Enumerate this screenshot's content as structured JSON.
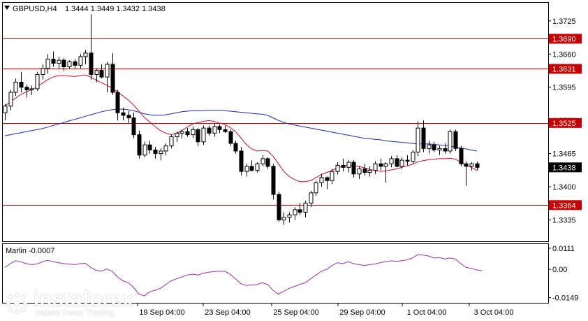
{
  "header": {
    "symbol": "GBPUSD,H4",
    "ohlc": "1.3444 1.3449 1.3432 1.3438",
    "indicator": "Marlin -0.0007"
  },
  "watermark": {
    "brand": "instaforex",
    "tagline": "Instant Forex Trading"
  },
  "colors": {
    "bull": "#ffffff",
    "bear": "#000000",
    "ma_fast": "#c8102e",
    "ma_slow": "#1c2bb0",
    "level": "#c80000",
    "oscillator": "#9b2fae",
    "grid_frame": "#000000"
  },
  "chart_data": [
    {
      "type": "candlestick",
      "title": "GBPUSD,H4",
      "ylim": [
        1.33,
        1.3755
      ],
      "y_ticks": [
        "1.3725",
        "1.3660",
        "1.3595",
        "1.3530",
        "1.3465",
        "1.3400",
        "1.3335"
      ],
      "x_tick_labels": [
        "19 Sep 04:00",
        "23 Sep 04:00",
        "25 Sep 04:00",
        "29 Sep 04:00",
        "1 Oct 04:00",
        "3 Oct 04:00"
      ],
      "current_price": "1.3438",
      "horizontal_levels": [
        "1.3690",
        "1.3631",
        "1.3525",
        "1.3364"
      ],
      "candles": [
        [
          1.3545,
          1.3562,
          1.353,
          1.3558
        ],
        [
          1.3558,
          1.359,
          1.355,
          1.3585
        ],
        [
          1.3585,
          1.3612,
          1.3578,
          1.3605
        ],
        [
          1.3605,
          1.3625,
          1.3585,
          1.3595
        ],
        [
          1.3595,
          1.36,
          1.3575,
          1.359
        ],
        [
          1.359,
          1.3598,
          1.358,
          1.3592
        ],
        [
          1.3592,
          1.3625,
          1.3588,
          1.362
        ],
        [
          1.362,
          1.364,
          1.361,
          1.3632
        ],
        [
          1.3632,
          1.366,
          1.3622,
          1.365
        ],
        [
          1.365,
          1.3665,
          1.3635,
          1.3642
        ],
        [
          1.3642,
          1.3655,
          1.363,
          1.3648
        ],
        [
          1.3648,
          1.3652,
          1.3628,
          1.3635
        ],
        [
          1.3635,
          1.3648,
          1.363,
          1.3645
        ],
        [
          1.3645,
          1.365,
          1.3632,
          1.3638
        ],
        [
          1.3638,
          1.366,
          1.3632,
          1.3655
        ],
        [
          1.3655,
          1.3668,
          1.364,
          1.3662
        ],
        [
          1.3662,
          1.3738,
          1.361,
          1.362
        ],
        [
          1.362,
          1.3632,
          1.3605,
          1.3628
        ],
        [
          1.3628,
          1.364,
          1.3612,
          1.3615
        ],
        [
          1.3615,
          1.3645,
          1.3585,
          1.364
        ],
        [
          1.364,
          1.3662,
          1.358,
          1.3585
        ],
        [
          1.3585,
          1.359,
          1.353,
          1.3545
        ],
        [
          1.3545,
          1.3555,
          1.353,
          1.354
        ],
        [
          1.354,
          1.3548,
          1.3525,
          1.3535
        ],
        [
          1.3535,
          1.3545,
          1.3495,
          1.3502
        ],
        [
          1.3502,
          1.351,
          1.3455,
          1.3462
        ],
        [
          1.3462,
          1.3488,
          1.3458,
          1.3482
        ],
        [
          1.3482,
          1.349,
          1.3465,
          1.3472
        ],
        [
          1.3472,
          1.3478,
          1.3455,
          1.3465
        ],
        [
          1.3465,
          1.3475,
          1.3452,
          1.347
        ],
        [
          1.347,
          1.3485,
          1.3462,
          1.348
        ],
        [
          1.348,
          1.3502,
          1.3475,
          1.3498
        ],
        [
          1.3498,
          1.3508,
          1.3488,
          1.3505
        ],
        [
          1.3505,
          1.3512,
          1.3495,
          1.3508
        ],
        [
          1.3508,
          1.3515,
          1.3498,
          1.3502
        ],
        [
          1.3502,
          1.3518,
          1.3495,
          1.3512
        ],
        [
          1.3512,
          1.3515,
          1.348,
          1.3488
        ],
        [
          1.3488,
          1.352,
          1.3482,
          1.3515
        ],
        [
          1.3515,
          1.352,
          1.35,
          1.3505
        ],
        [
          1.3505,
          1.3525,
          1.3498,
          1.3518
        ],
        [
          1.3518,
          1.3522,
          1.3505,
          1.3512
        ],
        [
          1.3512,
          1.352,
          1.3505,
          1.3508
        ],
        [
          1.3508,
          1.3512,
          1.348,
          1.3485
        ],
        [
          1.3485,
          1.349,
          1.3465,
          1.347
        ],
        [
          1.347,
          1.3478,
          1.3422,
          1.343
        ],
        [
          1.343,
          1.3445,
          1.342,
          1.344
        ],
        [
          1.344,
          1.3452,
          1.343,
          1.3432
        ],
        [
          1.3432,
          1.3448,
          1.3428,
          1.3445
        ],
        [
          1.3445,
          1.3462,
          1.344,
          1.3455
        ],
        [
          1.3455,
          1.3458,
          1.3435,
          1.344
        ],
        [
          1.344,
          1.3445,
          1.3375,
          1.3385
        ],
        [
          1.3385,
          1.339,
          1.3332,
          1.3335
        ],
        [
          1.3335,
          1.335,
          1.3325,
          1.334
        ],
        [
          1.334,
          1.335,
          1.333,
          1.3345
        ],
        [
          1.3345,
          1.336,
          1.3335,
          1.3355
        ],
        [
          1.3355,
          1.3368,
          1.3345,
          1.335
        ],
        [
          1.335,
          1.3372,
          1.334,
          1.3368
        ],
        [
          1.3368,
          1.3392,
          1.336,
          1.3388
        ],
        [
          1.3388,
          1.3412,
          1.3382,
          1.3408
        ],
        [
          1.3408,
          1.3425,
          1.34,
          1.3418
        ],
        [
          1.3418,
          1.342,
          1.3395,
          1.3412
        ],
        [
          1.3412,
          1.3435,
          1.3405,
          1.343
        ],
        [
          1.343,
          1.3448,
          1.3424,
          1.3442
        ],
        [
          1.3442,
          1.3455,
          1.343,
          1.3438
        ],
        [
          1.3438,
          1.3452,
          1.3428,
          1.3448
        ],
        [
          1.3448,
          1.3452,
          1.3418,
          1.3425
        ],
        [
          1.3425,
          1.344,
          1.3415,
          1.3435
        ],
        [
          1.3435,
          1.3445,
          1.3422,
          1.3428
        ],
        [
          1.3428,
          1.344,
          1.342,
          1.3432
        ],
        [
          1.3432,
          1.345,
          1.3425,
          1.3445
        ],
        [
          1.3445,
          1.3455,
          1.3432,
          1.344
        ],
        [
          1.344,
          1.3448,
          1.3408,
          1.3445
        ],
        [
          1.3445,
          1.346,
          1.3438,
          1.3455
        ],
        [
          1.3455,
          1.3462,
          1.3438,
          1.344
        ],
        [
          1.344,
          1.3458,
          1.3435,
          1.3452
        ],
        [
          1.3452,
          1.3462,
          1.3442,
          1.345
        ],
        [
          1.345,
          1.3472,
          1.3445,
          1.3468
        ],
        [
          1.3468,
          1.3528,
          1.346,
          1.3515
        ],
        [
          1.3515,
          1.353,
          1.3468,
          1.3475
        ],
        [
          1.3475,
          1.349,
          1.3465,
          1.3482
        ],
        [
          1.3482,
          1.3488,
          1.3468,
          1.3472
        ],
        [
          1.3472,
          1.348,
          1.3462,
          1.3475
        ],
        [
          1.3475,
          1.3485,
          1.3465,
          1.347
        ],
        [
          1.347,
          1.3512,
          1.3465,
          1.3508
        ],
        [
          1.3508,
          1.3512,
          1.347,
          1.3475
        ],
        [
          1.3475,
          1.348,
          1.344,
          1.3445
        ],
        [
          1.3445,
          1.345,
          1.3402,
          1.344
        ],
        [
          1.344,
          1.3448,
          1.3432,
          1.3445
        ],
        [
          1.3445,
          1.3449,
          1.3432,
          1.3438
        ]
      ],
      "ma_fast": [
        1.3558,
        1.3566,
        1.3574,
        1.3581,
        1.3586,
        1.359,
        1.3596,
        1.3603,
        1.361,
        1.3615,
        1.3618,
        1.3618,
        1.3617,
        1.3616,
        1.3618,
        1.3619,
        1.3615,
        1.3609,
        1.3604,
        1.3599,
        1.3593,
        1.3586,
        1.3578,
        1.357,
        1.356,
        1.3548,
        1.3536,
        1.3527,
        1.3518,
        1.351,
        1.3505,
        1.3502,
        1.3505,
        1.351,
        1.3517,
        1.3523,
        1.3526,
        1.3528,
        1.353,
        1.3528,
        1.3525,
        1.3522,
        1.3516,
        1.3508,
        1.3496,
        1.3483,
        1.3474,
        1.347,
        1.3471,
        1.347,
        1.346,
        1.3445,
        1.343,
        1.342,
        1.3414,
        1.341,
        1.341,
        1.3412,
        1.3418,
        1.3424,
        1.3428,
        1.3432,
        1.3437,
        1.344,
        1.3442,
        1.3441,
        1.344,
        1.3437,
        1.3434,
        1.3432,
        1.343,
        1.3431,
        1.3433,
        1.3435,
        1.3438,
        1.3441,
        1.3444,
        1.3449,
        1.3451,
        1.3453,
        1.3454,
        1.3455,
        1.3455,
        1.3456,
        1.3454,
        1.3448,
        1.3442,
        1.3438,
        1.3432
      ],
      "ma_slow": [
        1.35,
        1.3502,
        1.3504,
        1.3506,
        1.3508,
        1.351,
        1.3512,
        1.3514,
        1.3517,
        1.352,
        1.3523,
        1.3526,
        1.3529,
        1.3532,
        1.3535,
        1.3538,
        1.3541,
        1.3544,
        1.3547,
        1.3549,
        1.3551,
        1.3552,
        1.3552,
        1.3551,
        1.3549,
        1.3546,
        1.3543,
        1.3541,
        1.354,
        1.354,
        1.3541,
        1.3543,
        1.3545,
        1.3547,
        1.3548,
        1.3549,
        1.3549,
        1.3549,
        1.355,
        1.355,
        1.355,
        1.3549,
        1.3548,
        1.3547,
        1.3546,
        1.3545,
        1.3544,
        1.3543,
        1.3542,
        1.354,
        1.3535,
        1.353,
        1.3526,
        1.3523,
        1.3521,
        1.3519,
        1.3517,
        1.3515,
        1.3513,
        1.3511,
        1.3509,
        1.3507,
        1.3505,
        1.3503,
        1.3501,
        1.3499,
        1.3497,
        1.3495,
        1.3494,
        1.3493,
        1.3492,
        1.349,
        1.3489,
        1.3488,
        1.3487,
        1.3486,
        1.3485,
        1.3484,
        1.3484,
        1.3484,
        1.3483,
        1.3482,
        1.3481,
        1.348,
        1.3478,
        1.3476,
        1.3474,
        1.3472,
        1.347
      ]
    },
    {
      "type": "line",
      "title": "Marlin -0.0007",
      "ylim": [
        -0.0165,
        0.0122
      ],
      "y_ticks": [
        "0.0111",
        "0.00",
        "-0.0149"
      ],
      "series": [
        {
          "values": [
            0.001,
            0.003,
            0.0045,
            0.004,
            0.003,
            0.0025,
            0.0028,
            0.004,
            0.0048,
            0.004,
            0.0035,
            0.003,
            0.0028,
            0.0025,
            0.003,
            0.0032,
            0.001,
            -0.0005,
            -0.001,
            0.0002,
            -0.001,
            -0.004,
            -0.006,
            -0.007,
            -0.0095,
            -0.013,
            -0.014,
            -0.0118,
            -0.011,
            -0.01,
            -0.008,
            -0.006,
            -0.005,
            -0.004,
            -0.003,
            -0.0025,
            -0.003,
            -0.002,
            -0.0015,
            -0.0012,
            -0.001,
            -0.001,
            -0.0025,
            -0.005,
            -0.0075,
            -0.0085,
            -0.0082,
            -0.008,
            -0.007,
            -0.008,
            -0.011,
            -0.013,
            -0.0115,
            -0.01,
            -0.009,
            -0.008,
            -0.007,
            -0.005,
            -0.003,
            -0.001,
            0.0,
            0.002,
            0.0035,
            0.003,
            0.004,
            0.003,
            0.0025,
            0.002,
            0.0025,
            0.0028,
            0.0035,
            0.004,
            0.0045,
            0.0042,
            0.0046,
            0.005,
            0.006,
            0.0078,
            0.0075,
            0.007,
            0.006,
            0.0062,
            0.0055,
            0.006,
            0.0055,
            0.003,
            0.001,
            0.0005,
            -0.0003,
            -0.0007
          ]
        }
      ]
    }
  ]
}
